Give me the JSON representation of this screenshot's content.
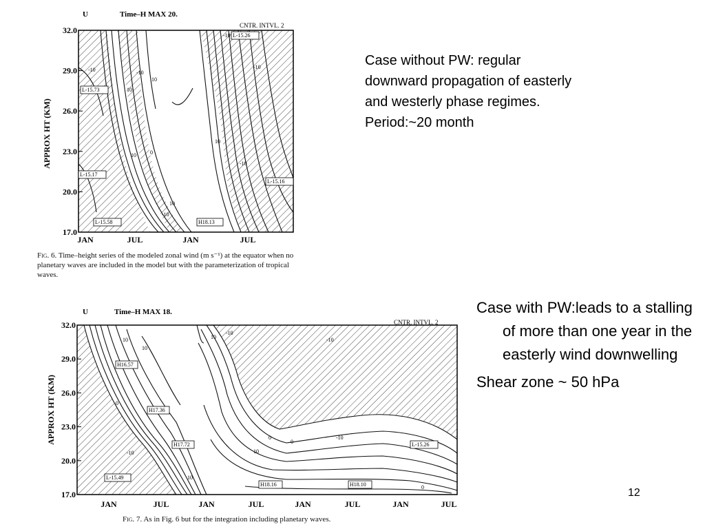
{
  "figure6": {
    "header": {
      "var": "U",
      "title": "Time–H MAX  20.",
      "interval": "CNTR. INTVL. 2"
    },
    "ylabel": "APPROX HT (KM)",
    "yticks": [
      "32.0",
      "29.0",
      "26.0",
      "23.0",
      "20.0",
      "17.0"
    ],
    "xticks": [
      "JAN",
      "JUL",
      "JAN",
      "JUL"
    ],
    "contour_labels": [
      "-10",
      "10",
      "-10",
      "10",
      "-10",
      "10",
      "0",
      "-10",
      "10",
      "-10",
      "-10",
      "10"
    ],
    "boxed_labels": [
      "L-15.73",
      "L-15.17",
      "L-15.58",
      "L-15.26",
      "L-15.16",
      "H18.13"
    ],
    "caption": {
      "label": "Fig. 6.",
      "text": " Time–height series of the modeled zonal wind (m s⁻¹) at the equator when no planetary waves are included in the model but with the parameterization of tropical waves."
    }
  },
  "figure7": {
    "header": {
      "var": "U",
      "title": "Time–H MAX  18.",
      "interval": "CNTR. INTVL. 2"
    },
    "ylabel": "APPROX HT (KM)",
    "yticks": [
      "32.0",
      "29.0",
      "26.0",
      "23.0",
      "20.0",
      "17.0"
    ],
    "xticks": [
      "JAN",
      "JUL",
      "JAN",
      "JUL",
      "JAN",
      "JUL",
      "JAN",
      "JUL"
    ],
    "contour_labels": [
      "10",
      "10",
      "-10",
      "0",
      "-10",
      "10",
      "-10",
      "0",
      "10",
      "10",
      "-10",
      "0",
      "0"
    ],
    "boxed_labels": [
      "H16.57",
      "H17.36",
      "H17.72",
      "L-15.49",
      "H18.16",
      "H18.10",
      "L-15.26"
    ],
    "caption": {
      "label": "Fig. 7.",
      "text": " As in Fig. 6 but for the integration including planetary waves."
    }
  },
  "notes": {
    "without_pw": [
      "Case without PW: regular",
      "downward propagation of easterly",
      "and westerly phase regimes.",
      "Period:~20 month"
    ],
    "with_pw": {
      "line1": "Case with PW:leads to a stalling of more than one year in the easterly wind downwelling",
      "line2": "Shear zone ~ 50 hPa"
    }
  },
  "page_number": "12"
}
